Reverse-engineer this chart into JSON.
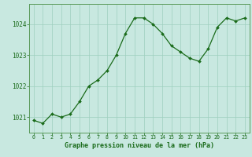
{
  "x": [
    0,
    1,
    2,
    3,
    4,
    5,
    6,
    7,
    8,
    9,
    10,
    11,
    12,
    13,
    14,
    15,
    16,
    17,
    18,
    19,
    20,
    21,
    22,
    23
  ],
  "y": [
    1020.9,
    1020.8,
    1021.1,
    1021.0,
    1021.1,
    1021.5,
    1022.0,
    1022.2,
    1022.5,
    1023.0,
    1023.7,
    1024.2,
    1024.2,
    1024.0,
    1023.7,
    1023.3,
    1023.1,
    1022.9,
    1022.8,
    1023.2,
    1023.9,
    1024.2,
    1024.1,
    1024.2
  ],
  "line_color": "#1a6b1a",
  "marker_color": "#1a6b1a",
  "bg_color": "#c8e8e0",
  "grid_color": "#9ecfbe",
  "xlabel": "Graphe pression niveau de la mer (hPa)",
  "xlabel_color": "#1a6b1a",
  "ylabel_ticks": [
    1021,
    1022,
    1023,
    1024
  ],
  "ylim": [
    1020.5,
    1024.65
  ],
  "xlim": [
    -0.5,
    23.5
  ],
  "tick_color": "#1a6b1a",
  "tick_label_color": "#1a6b1a",
  "border_color": "#5a9a5a"
}
